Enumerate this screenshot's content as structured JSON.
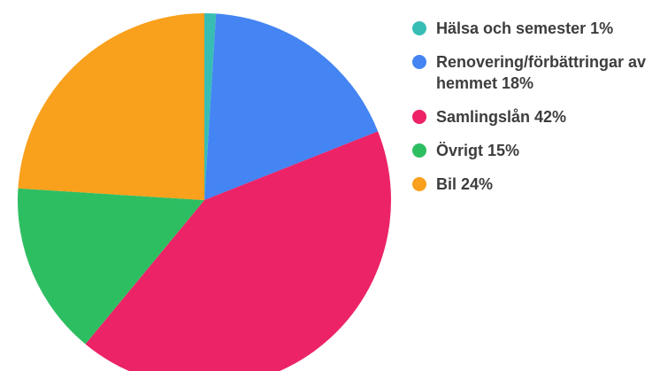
{
  "chart_data": {
    "type": "pie",
    "title": "",
    "labels": [
      "Hälsa och semester",
      "Renovering/förbättringar av hemmet",
      "Samlingslån",
      "Övrigt",
      "Bil"
    ],
    "values": [
      1,
      18,
      42,
      15,
      24
    ],
    "unit": "%",
    "colors": [
      "#38BDB5",
      "#4484F3",
      "#EC2366",
      "#2EBE62",
      "#F9A01C"
    ],
    "start_angle_deg": 0,
    "direction": "clockwise",
    "legend_position": "right",
    "grid": false
  },
  "legend": {
    "text_color": "#3d3d3d",
    "items": [
      {
        "label": "Hälsa och semester 1%",
        "color": "#38BDB5"
      },
      {
        "label": "Renovering/förbättringar av hemmet 18%",
        "color": "#4484F3"
      },
      {
        "label": "Samlingslån 42%",
        "color": "#EC2366"
      },
      {
        "label": "Övrigt 15%",
        "color": "#2EBE62"
      },
      {
        "label": "Bil 24%",
        "color": "#F9A01C"
      }
    ]
  },
  "colors": {
    "background": "#ffffff"
  }
}
